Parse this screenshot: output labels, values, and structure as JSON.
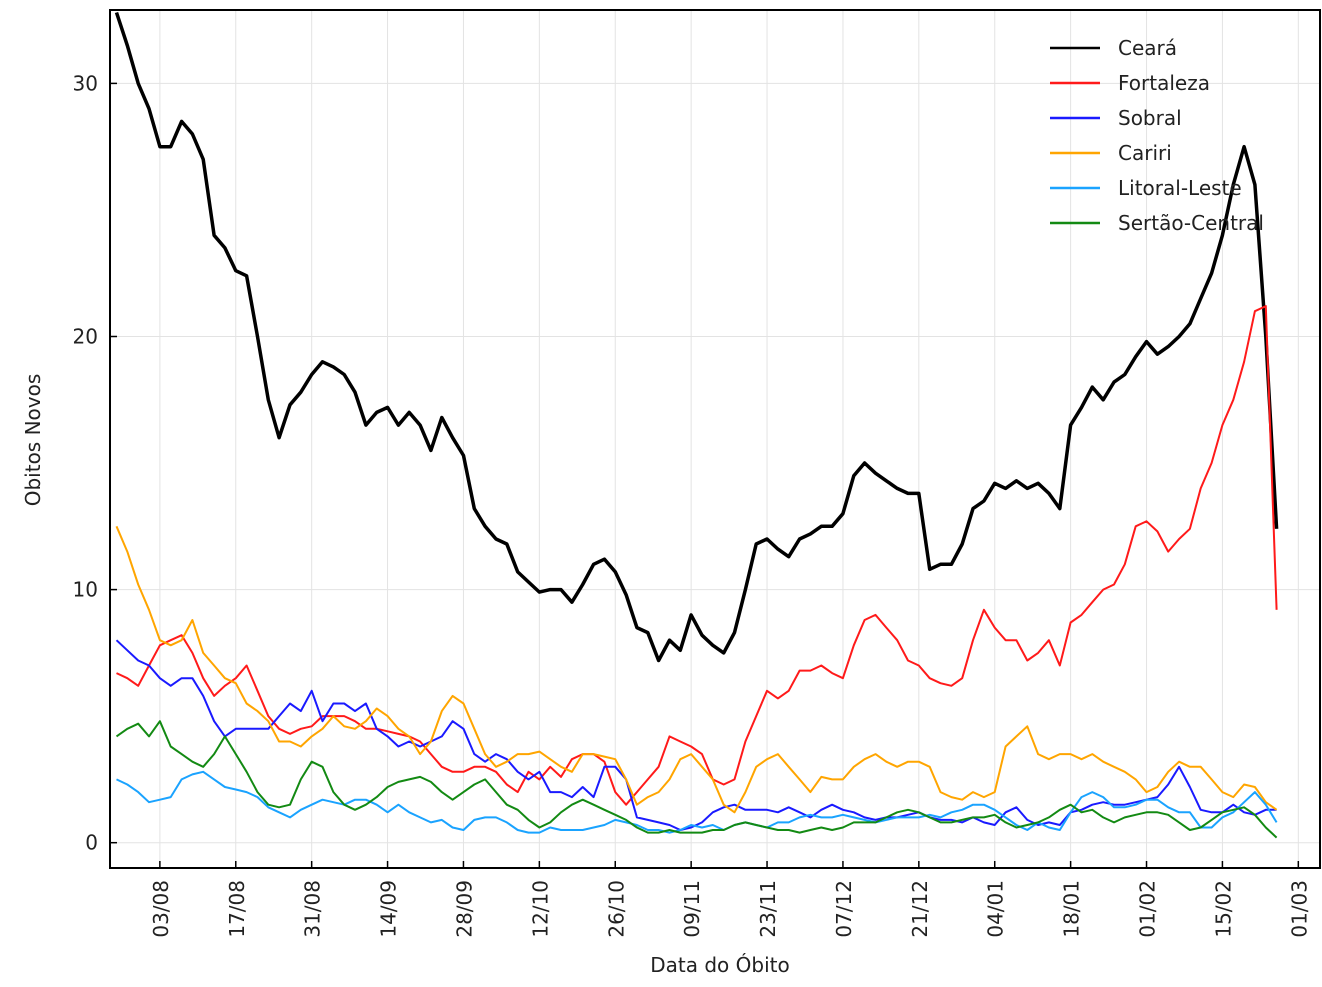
{
  "chart_data": {
    "type": "line",
    "x_label": "Data do Óbito",
    "y_label": "Obitos Novos",
    "categories": [
      null,
      null,
      null,
      null,
      "03/08",
      null,
      null,
      null,
      null,
      null,
      null,
      "17/08",
      null,
      null,
      null,
      null,
      null,
      null,
      "31/08",
      null,
      null,
      null,
      null,
      null,
      null,
      "14/09",
      null,
      null,
      null,
      null,
      null,
      null,
      "28/09",
      null,
      null,
      null,
      null,
      null,
      null,
      "12/10",
      null,
      null,
      null,
      null,
      null,
      null,
      "26/10",
      null,
      null,
      null,
      null,
      null,
      null,
      "09/11",
      null,
      null,
      null,
      null,
      null,
      null,
      "23/11",
      null,
      null,
      null,
      null,
      null,
      null,
      "07/12",
      null,
      null,
      null,
      null,
      null,
      null,
      "21/12",
      null,
      null,
      null,
      null,
      null,
      null,
      "04/01",
      null,
      null,
      null,
      null,
      null,
      null,
      "18/01",
      null,
      null,
      null,
      null,
      null,
      null,
      "01/02",
      null,
      null,
      null,
      null,
      null,
      null,
      "15/02",
      null,
      null,
      null,
      null,
      null,
      null,
      "01/03",
      null,
      null
    ],
    "ylim": [
      -1,
      32.9
    ],
    "yticks": [
      0,
      10,
      20,
      30
    ],
    "grid": true,
    "legend": "upper right",
    "series": [
      {
        "name": "Ceará",
        "color": "#000000",
        "width": 3.5,
        "values": [
          32.8,
          31.5,
          30,
          29,
          27.5,
          27.5,
          28.5,
          28,
          27,
          24,
          23.5,
          22.6,
          22.4,
          20,
          17.5,
          16,
          17.3,
          17.8,
          18.5,
          19,
          18.8,
          18.5,
          17.8,
          16.5,
          17,
          17.2,
          16.5,
          17,
          16.5,
          15.5,
          16.8,
          16,
          15.3,
          13.2,
          12.5,
          12,
          11.8,
          10.7,
          10.3,
          9.9,
          10,
          10,
          9.5,
          10.2,
          11,
          11.2,
          10.7,
          9.8,
          8.5,
          8.3,
          7.2,
          8,
          7.6,
          9,
          8.2,
          7.8,
          7.5,
          8.3,
          10,
          11.8,
          12,
          11.6,
          11.3,
          12,
          12.2,
          12.5,
          12.5,
          13,
          14.5,
          15,
          14.6,
          14.3,
          14,
          13.8,
          13.8,
          10.8,
          11,
          11,
          11.8,
          13.2,
          13.5,
          14.2,
          14,
          14.3,
          14,
          14.2,
          13.8,
          13.2,
          16.5,
          17.2,
          18,
          17.5,
          18.2,
          18.5,
          19.2,
          19.8,
          19.3,
          19.6,
          20,
          20.5,
          21.5,
          22.5,
          24,
          26,
          27.5,
          26,
          20,
          12.4,
          null,
          null,
          null,
          null
        ]
      },
      {
        "name": "Fortaleza",
        "color": "#ff1a1a",
        "width": 2,
        "values": [
          6.7,
          6.5,
          6.2,
          7,
          7.8,
          8,
          8.2,
          7.5,
          6.5,
          5.8,
          6.2,
          6.5,
          7,
          6,
          5,
          4.5,
          4.3,
          4.5,
          4.6,
          5,
          5,
          5,
          4.8,
          4.5,
          4.5,
          4.4,
          4.3,
          4.2,
          4,
          3.5,
          3,
          2.8,
          2.8,
          3,
          3,
          2.8,
          2.3,
          2,
          2.8,
          2.5,
          3,
          2.6,
          3.3,
          3.5,
          3.5,
          3.2,
          2,
          1.5,
          2,
          2.5,
          3,
          4.2,
          4,
          3.8,
          3.5,
          2.5,
          2.3,
          2.5,
          4,
          5,
          6,
          5.7,
          6,
          6.8,
          6.8,
          7,
          6.7,
          6.5,
          7.8,
          8.8,
          9,
          8.5,
          8,
          7.2,
          7,
          6.5,
          6.3,
          6.2,
          6.5,
          8,
          9.2,
          8.5,
          8,
          8,
          7.2,
          7.5,
          8,
          7,
          8.7,
          9,
          9.5,
          10,
          10.2,
          11,
          12.5,
          12.7,
          12.3,
          11.5,
          12,
          12.4,
          14,
          15,
          16.5,
          17.5,
          19,
          21,
          21.2,
          9.2,
          null,
          null,
          null,
          null
        ]
      },
      {
        "name": "Sobral",
        "color": "#1a1aff",
        "width": 2,
        "values": [
          8,
          7.6,
          7.2,
          7,
          6.5,
          6.2,
          6.5,
          6.5,
          5.8,
          4.8,
          4.2,
          4.5,
          4.5,
          4.5,
          4.5,
          5,
          5.5,
          5.2,
          6,
          4.8,
          5.5,
          5.5,
          5.2,
          5.5,
          4.5,
          4.2,
          3.8,
          4,
          3.8,
          4,
          4.2,
          4.8,
          4.5,
          3.5,
          3.2,
          3.5,
          3.3,
          2.8,
          2.5,
          2.8,
          2,
          2,
          1.8,
          2.2,
          1.8,
          3,
          3,
          2.5,
          1,
          0.9,
          0.8,
          0.7,
          0.5,
          0.6,
          0.8,
          1.2,
          1.4,
          1.5,
          1.3,
          1.3,
          1.3,
          1.2,
          1.4,
          1.2,
          1,
          1.3,
          1.5,
          1.3,
          1.2,
          1,
          0.9,
          1,
          1,
          1.1,
          1.2,
          1,
          0.9,
          0.9,
          0.8,
          1,
          0.8,
          0.7,
          1.2,
          1.4,
          0.9,
          0.7,
          0.8,
          0.7,
          1.2,
          1.3,
          1.5,
          1.6,
          1.5,
          1.5,
          1.6,
          1.7,
          1.8,
          2.3,
          3,
          2.2,
          1.3,
          1.2,
          1.2,
          1.5,
          1.2,
          1.1,
          1.3,
          1.3,
          null,
          null,
          null,
          null
        ]
      },
      {
        "name": "Cariri",
        "color": "#ffa500",
        "width": 2,
        "values": [
          12.5,
          11.5,
          10.2,
          9.2,
          8,
          7.8,
          8,
          8.8,
          7.5,
          7,
          6.5,
          6.3,
          5.5,
          5.2,
          4.8,
          4,
          4,
          3.8,
          4.2,
          4.5,
          5,
          4.6,
          4.5,
          4.8,
          5.3,
          5,
          4.5,
          4.2,
          3.5,
          4,
          5.2,
          5.8,
          5.5,
          4.5,
          3.5,
          3,
          3.2,
          3.5,
          3.5,
          3.6,
          3.3,
          3,
          2.8,
          3.5,
          3.5,
          3.4,
          3.3,
          2.5,
          1.5,
          1.8,
          2,
          2.5,
          3.3,
          3.5,
          3,
          2.5,
          1.5,
          1.2,
          2,
          3,
          3.3,
          3.5,
          3,
          2.5,
          2,
          2.6,
          2.5,
          2.5,
          3,
          3.3,
          3.5,
          3.2,
          3,
          3.2,
          3.2,
          3,
          2,
          1.8,
          1.7,
          2,
          1.8,
          2,
          3.8,
          4.2,
          4.6,
          3.5,
          3.3,
          3.5,
          3.5,
          3.3,
          3.5,
          3.2,
          3,
          2.8,
          2.5,
          2,
          2.2,
          2.8,
          3.2,
          3,
          3,
          2.5,
          2,
          1.8,
          2.3,
          2.2,
          1.6,
          1.3,
          null,
          null,
          null,
          null
        ]
      },
      {
        "name": "Litoral-Leste",
        "color": "#1aa3ff",
        "width": 2,
        "values": [
          2.5,
          2.3,
          2,
          1.6,
          1.7,
          1.8,
          2.5,
          2.7,
          2.8,
          2.5,
          2.2,
          2.1,
          2,
          1.8,
          1.4,
          1.2,
          1,
          1.3,
          1.5,
          1.7,
          1.6,
          1.5,
          1.7,
          1.7,
          1.5,
          1.2,
          1.5,
          1.2,
          1,
          0.8,
          0.9,
          0.6,
          0.5,
          0.9,
          1,
          1,
          0.8,
          0.5,
          0.4,
          0.4,
          0.6,
          0.5,
          0.5,
          0.5,
          0.6,
          0.7,
          0.9,
          0.8,
          0.7,
          0.5,
          0.5,
          0.4,
          0.5,
          0.7,
          0.6,
          0.7,
          0.5,
          0.7,
          0.8,
          0.7,
          0.6,
          0.8,
          0.8,
          1,
          1.1,
          1,
          1,
          1.1,
          1,
          0.9,
          0.8,
          0.9,
          1,
          1,
          1,
          1.1,
          1,
          1.2,
          1.3,
          1.5,
          1.5,
          1.3,
          1,
          0.7,
          0.5,
          0.8,
          0.6,
          0.5,
          1.2,
          1.8,
          2,
          1.8,
          1.4,
          1.4,
          1.5,
          1.7,
          1.7,
          1.4,
          1.2,
          1.2,
          0.6,
          0.6,
          1,
          1.2,
          1.6,
          2,
          1.5,
          0.8,
          null,
          null,
          null,
          null
        ]
      },
      {
        "name": "Sertão-Central",
        "color": "#138a13",
        "width": 2,
        "values": [
          4.2,
          4.5,
          4.7,
          4.2,
          4.8,
          3.8,
          3.5,
          3.2,
          3,
          3.5,
          4.2,
          3.5,
          2.8,
          2,
          1.5,
          1.4,
          1.5,
          2.5,
          3.2,
          3,
          2,
          1.5,
          1.3,
          1.5,
          1.8,
          2.2,
          2.4,
          2.5,
          2.6,
          2.4,
          2,
          1.7,
          2,
          2.3,
          2.5,
          2,
          1.5,
          1.3,
          0.9,
          0.6,
          0.8,
          1.2,
          1.5,
          1.7,
          1.5,
          1.3,
          1.1,
          0.9,
          0.6,
          0.4,
          0.4,
          0.5,
          0.4,
          0.4,
          0.4,
          0.5,
          0.5,
          0.7,
          0.8,
          0.7,
          0.6,
          0.5,
          0.5,
          0.4,
          0.5,
          0.6,
          0.5,
          0.6,
          0.8,
          0.8,
          0.8,
          1,
          1.2,
          1.3,
          1.2,
          1,
          0.8,
          0.8,
          0.9,
          1,
          1,
          1.1,
          0.8,
          0.6,
          0.7,
          0.8,
          1,
          1.3,
          1.5,
          1.2,
          1.3,
          1,
          0.8,
          1,
          1.1,
          1.2,
          1.2,
          1.1,
          0.8,
          0.5,
          0.6,
          0.9,
          1.2,
          1.3,
          1.4,
          1.1,
          0.6,
          0.2,
          null,
          null,
          null,
          null
        ]
      }
    ]
  }
}
